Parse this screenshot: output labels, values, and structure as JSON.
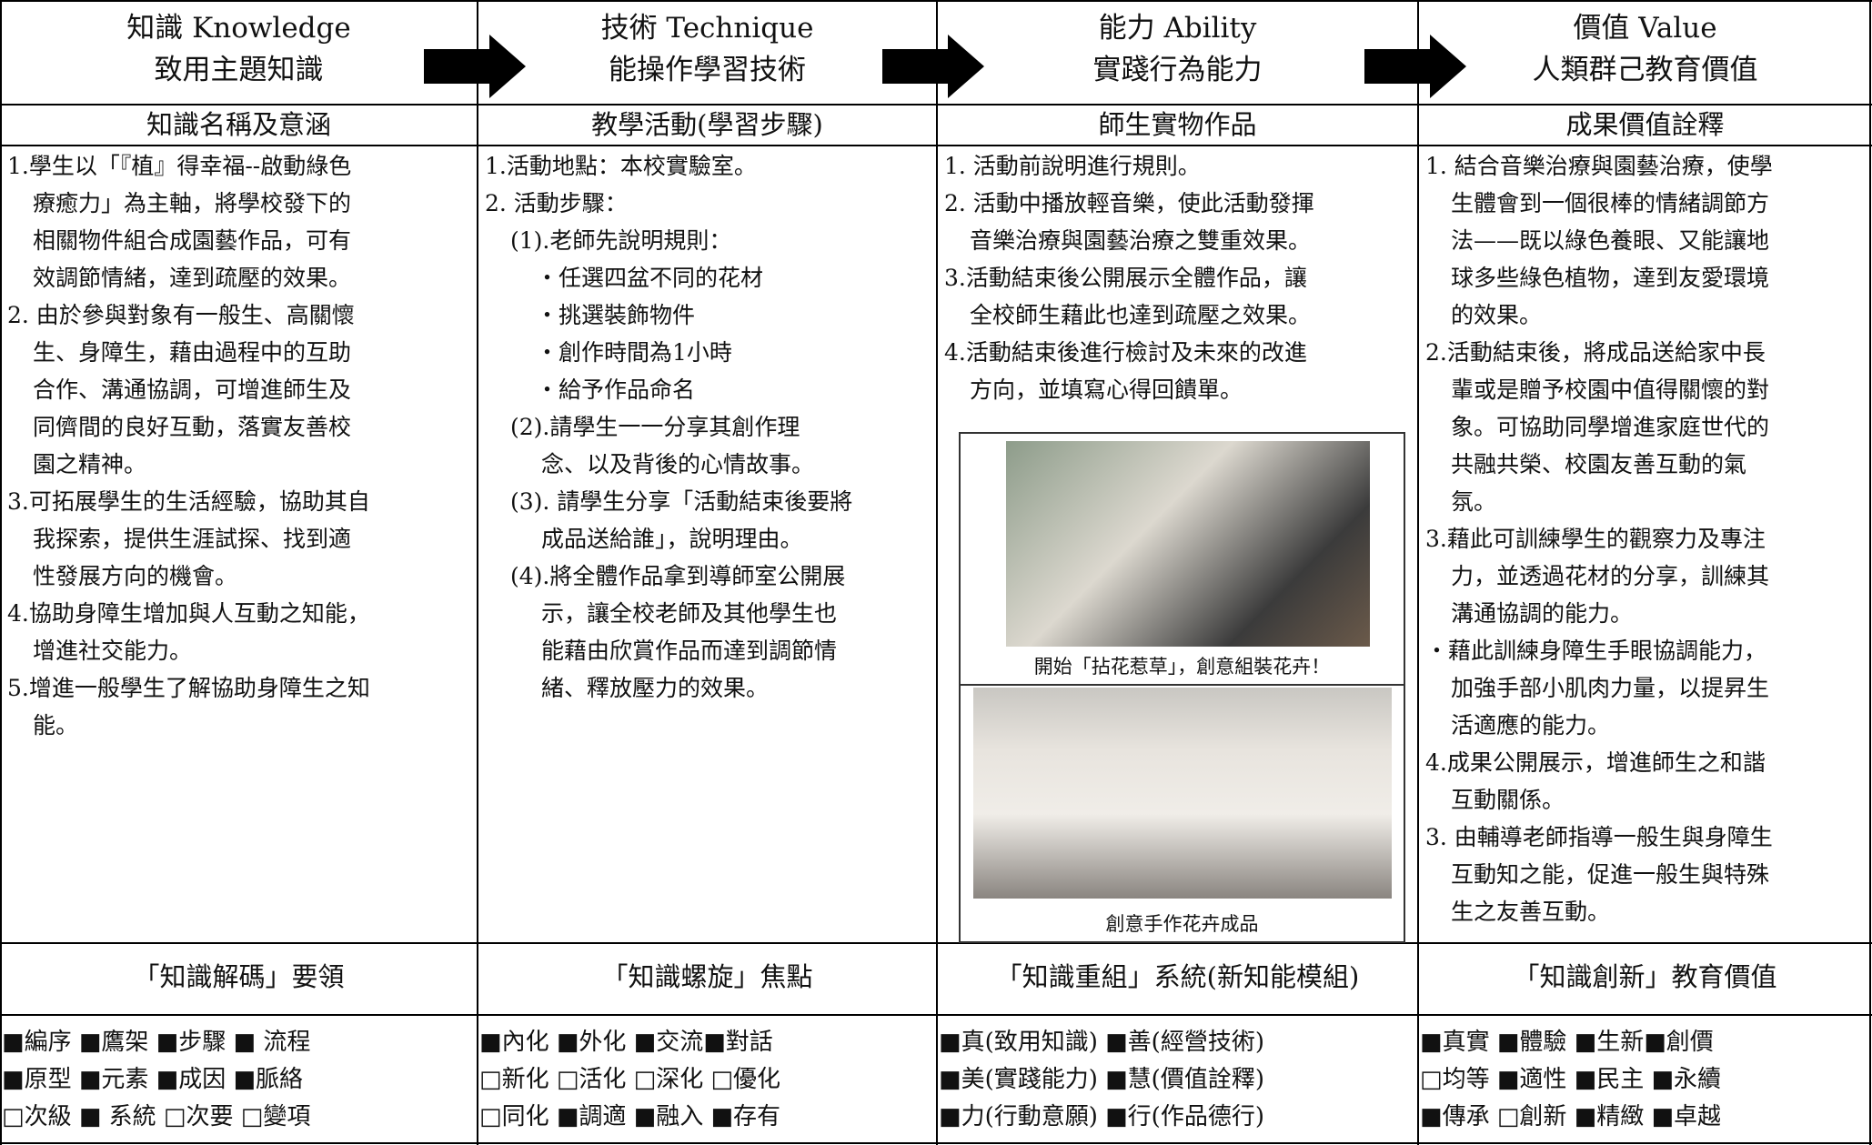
{
  "columns": [
    {
      "header": [
        "知識 Knowledge",
        "致用主題知識"
      ],
      "subheader": "知識名稱及意涵",
      "paragraphs": [
        [
          "1.學生以「『植』得幸福--啟動綠色",
          "療癒力」為主軸，將學校發下的",
          "相關物件組合成園藝作品，可有",
          "效調節情緒，達到疏壓的效果。"
        ],
        [
          "2. 由於參與對象有一般生、高關懷",
          "生、身障生，藉由過程中的互助",
          "合作、溝通協調，可增進師生及",
          "同儕間的良好互動，落實友善校",
          "園之精神。"
        ],
        [
          "3.可拓展學生的生活經驗，協助其自",
          "我探索，提供生涯試探、找到適",
          "性發展方向的機會。"
        ],
        [
          "4.協助身障生增加與人互動之知能，",
          "增進社交能力。"
        ],
        [
          "5.增進一般學生了解協助身障生之知",
          "能。"
        ]
      ],
      "section_title": "「知識解碼」要領",
      "checklist": [
        "■編序 ■鷹架 ■步驟 ■ 流程",
        "■原型 ■元素 ■成因 ■脈絡",
        "□次級 ■ 系統 □次要 □變項"
      ]
    },
    {
      "header": [
        "技術 Technique",
        "能操作學習技術"
      ],
      "subheader": "教學活動(學習步驟)",
      "paragraphs": [
        [
          "1.活動地點：本校實驗室。"
        ],
        [
          "2. 活動步驟："
        ],
        [
          "(1).老師先說明規則："
        ],
        [
          "・任選四盆不同的花材"
        ],
        [
          "・挑選裝飾物件"
        ],
        [
          "・創作時間為1小時"
        ],
        [
          "・給予作品命名"
        ],
        [
          "(2).請學生一一分享其創作理",
          "念、以及背後的心情故事。"
        ],
        [
          "(3). 請學生分享「活動結束後要將",
          "成品送給誰」，說明理由。"
        ],
        [
          "(4).將全體作品拿到導師室公開展",
          "示，讓全校老師及其他學生也",
          "能藉由欣賞作品而達到調節情",
          "緒、釋放壓力的效果。"
        ]
      ],
      "section_title": "「知識螺旋」焦點",
      "checklist": [
        "■內化 ■外化 ■交流■對話",
        "□新化 □活化 □深化 □優化",
        "□同化 ■調適 ■融入 ■存有"
      ]
    },
    {
      "header": [
        "能力 Ability",
        "實踐行為能力"
      ],
      "subheader": "師生實物作品",
      "paragraphs": [
        [
          "1. 活動前說明進行規則。"
        ],
        [
          "2. 活動中播放輕音樂，使此活動發揮",
          "音樂治療與園藝治療之雙重效果。"
        ],
        [
          "3.活動結束後公開展示全體作品，讓",
          "全校師生藉此也達到疏壓之效果。"
        ],
        [
          "4.活動結束後進行檢討及未來的改進",
          "方向，並填寫心得回饋單。"
        ]
      ],
      "photo_captions": [
        "開始「拈花惹草」，創意組裝花卉！",
        "創意手作花卉成品"
      ],
      "section_title": "「知識重組」系統(新知能模組)",
      "checklist": [
        "■真(致用知識) ■善(經營技術)",
        "■美(實踐能力) ■慧(價值詮釋)",
        "■力(行動意願) ■行(作品德行)"
      ]
    },
    {
      "header": [
        "價值 Value",
        "人類群己教育價值"
      ],
      "subheader": "成果價值詮釋",
      "paragraphs": [
        [
          "1. 結合音樂治療與園藝治療，使學",
          "生體會到一個很棒的情緒調節方",
          "法——既以綠色養眼、又能讓地",
          "球多些綠色植物，達到友愛環境",
          "的效果。"
        ],
        [
          "2.活動結束後，將成品送給家中長",
          "輩或是贈予校園中值得關懷的對",
          "象。可協助同學增進家庭世代的",
          "共融共榮、校園友善互動的氣",
          "氛。"
        ],
        [
          "3.藉此可訓練學生的觀察力及專注",
          "力，並透過花材的分享，訓練其",
          "溝通協調的能力。"
        ],
        [
          "・藉此訓練身障生手眼協調能力，",
          "加強手部小肌肉力量，以提昇生",
          "活適應的能力。"
        ],
        [
          "4.成果公開展示，增進師生之和諧",
          "互動關係。"
        ],
        [
          "3. 由輔導老師指導一般生與身障生",
          "互動知之能，促進一般生與特殊",
          "生之友善互動。"
        ]
      ],
      "section_title": "「知識創新」教育價值",
      "checklist": [
        "■真實 ■體驗 ■生新■創價",
        "□均等 ■適性 ■民主 ■永續",
        "■傳承 □創新 ■精緻 ■卓越"
      ]
    }
  ]
}
